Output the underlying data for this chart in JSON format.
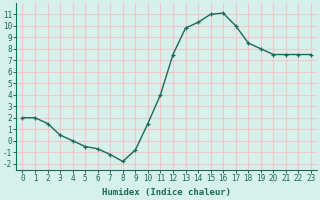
{
  "x": [
    0,
    1,
    2,
    3,
    4,
    5,
    6,
    7,
    8,
    9,
    10,
    11,
    12,
    13,
    14,
    15,
    16,
    17,
    18,
    19,
    20,
    21,
    22,
    23
  ],
  "y": [
    2,
    2,
    1.5,
    0.5,
    0.0,
    -0.5,
    -0.7,
    -1.2,
    -1.8,
    -0.8,
    1.5,
    4.0,
    7.5,
    9.8,
    10.3,
    11.0,
    11.1,
    10.0,
    8.5,
    8.0,
    7.5,
    7.5,
    7.5,
    7.5
  ],
  "xlabel": "Humidex (Indice chaleur)",
  "ylim": [
    -2.5,
    12
  ],
  "xlim": [
    -0.5,
    23.5
  ],
  "yticks": [
    -2,
    -1,
    0,
    1,
    2,
    3,
    4,
    5,
    6,
    7,
    8,
    9,
    10,
    11
  ],
  "xticks": [
    0,
    1,
    2,
    3,
    4,
    5,
    6,
    7,
    8,
    9,
    10,
    11,
    12,
    13,
    14,
    15,
    16,
    17,
    18,
    19,
    20,
    21,
    22,
    23
  ],
  "line_color": "#1a6b5a",
  "marker": "+",
  "background_color": "#d6f0eb",
  "grid_color": "#f0c8c8",
  "tick_fontsize": 5.5,
  "xlabel_fontsize": 6.5,
  "linewidth": 1.0
}
